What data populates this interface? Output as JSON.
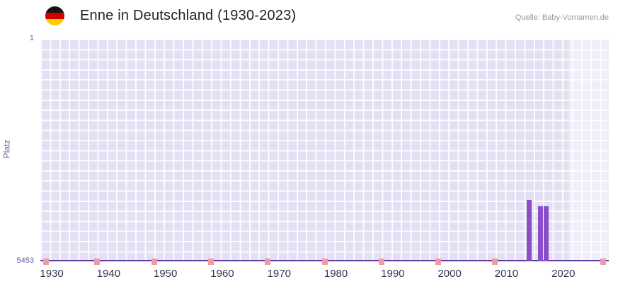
{
  "header": {
    "title": "Enne in Deutschland (1930-2023)",
    "source": "Quelle: Baby-Vornamen.de",
    "flag": "german-flag"
  },
  "chart_data": {
    "type": "bar",
    "title": "Enne in Deutschland (1930-2023)",
    "xlabel": "",
    "ylabel": "Platz",
    "y_axis": {
      "min": 1,
      "max": 5453,
      "inverted": true,
      "top_label": "1",
      "bottom_label": "5453"
    },
    "x_axis": {
      "range": [
        1928,
        2028
      ],
      "tick_years": [
        1930,
        1940,
        1950,
        1960,
        1970,
        1980,
        1990,
        2000,
        2010,
        2020
      ]
    },
    "series": [
      {
        "name": "Platz",
        "color": "#8a4fc8",
        "points": [
          {
            "year": 2014,
            "rank": 3950
          },
          {
            "year": 2016,
            "rank": 4100
          },
          {
            "year": 2017,
            "rank": 4100
          }
        ]
      }
    ],
    "baseline_marker_years": [
      1929,
      1938,
      1948,
      1958,
      1968,
      1978,
      1988,
      1998,
      2008,
      2027
    ],
    "baseline_marker_color": "#f09aa6",
    "highlight_band": {
      "from_year": 2021,
      "to_year": 2028
    },
    "colors": {
      "plot_bg": "#e4e0f3",
      "grid": "#ffffff",
      "axis_line": "#5c3a9e",
      "bar": "#8a4fc8"
    },
    "grid": true,
    "legend": "none"
  }
}
